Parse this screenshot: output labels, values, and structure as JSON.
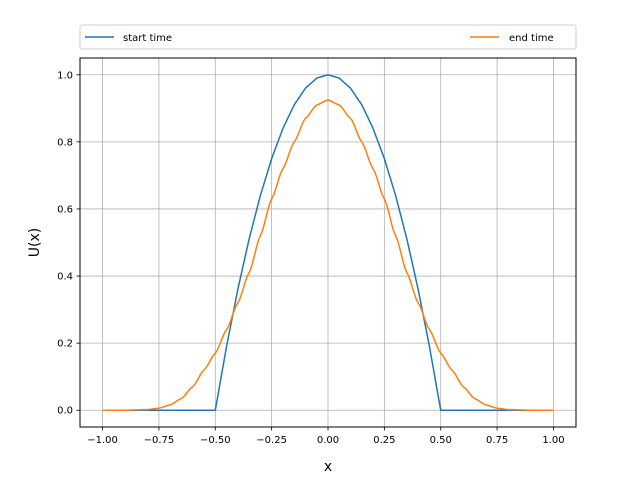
{
  "chart_data": {
    "type": "line",
    "title": "",
    "xlabel": "x",
    "ylabel": "U(x)",
    "xlim": [
      -1.1,
      1.1
    ],
    "ylim": [
      -0.05,
      1.05
    ],
    "grid": true,
    "legend_placement": "top, above plot, two columns",
    "xticks": [
      -1.0,
      -0.75,
      -0.5,
      -0.25,
      0.0,
      0.25,
      0.5,
      0.75,
      1.0
    ],
    "xtick_labels": [
      "−1.00",
      "−0.75",
      "−0.50",
      "−0.25",
      "0.00",
      "0.25",
      "0.50",
      "0.75",
      "1.00"
    ],
    "yticks": [
      0.0,
      0.2,
      0.4,
      0.6,
      0.8,
      1.0
    ],
    "ytick_labels": [
      "0.0",
      "0.2",
      "0.4",
      "0.6",
      "0.8",
      "1.0"
    ],
    "series": [
      {
        "name": "start time",
        "color": "#1f77b4",
        "x": [
          -1.0,
          -0.75,
          -0.5,
          -0.45,
          -0.4,
          -0.35,
          -0.3,
          -0.25,
          -0.2,
          -0.15,
          -0.1,
          -0.05,
          0.0,
          0.05,
          0.1,
          0.15,
          0.2,
          0.25,
          0.3,
          0.35,
          0.4,
          0.45,
          0.5,
          0.75,
          1.0
        ],
        "y": [
          0.0,
          0.0,
          0.0,
          0.19,
          0.36,
          0.51,
          0.64,
          0.75,
          0.84,
          0.91,
          0.96,
          0.99,
          1.0,
          0.99,
          0.96,
          0.91,
          0.84,
          0.75,
          0.64,
          0.51,
          0.36,
          0.19,
          0.0,
          0.0,
          0.0
        ]
      },
      {
        "name": "end time",
        "color": "#ff7f0e",
        "x": [
          -1.0,
          -0.9,
          -0.8,
          -0.75,
          -0.7,
          -0.65,
          -0.6,
          -0.55,
          -0.5,
          -0.45,
          -0.4,
          -0.35,
          -0.3,
          -0.25,
          -0.2,
          -0.15,
          -0.1,
          -0.05,
          0.0,
          0.05,
          0.1,
          0.15,
          0.2,
          0.25,
          0.3,
          0.35,
          0.4,
          0.45,
          0.5,
          0.55,
          0.6,
          0.65,
          0.7,
          0.75,
          0.8,
          0.9,
          1.0
        ],
        "y": [
          0.0,
          0.0,
          0.002,
          0.006,
          0.016,
          0.035,
          0.07,
          0.12,
          0.17,
          0.24,
          0.32,
          0.41,
          0.52,
          0.63,
          0.72,
          0.8,
          0.87,
          0.91,
          0.925,
          0.91,
          0.87,
          0.8,
          0.72,
          0.63,
          0.52,
          0.41,
          0.32,
          0.24,
          0.17,
          0.12,
          0.07,
          0.035,
          0.016,
          0.006,
          0.002,
          0.0,
          0.0
        ]
      }
    ]
  }
}
